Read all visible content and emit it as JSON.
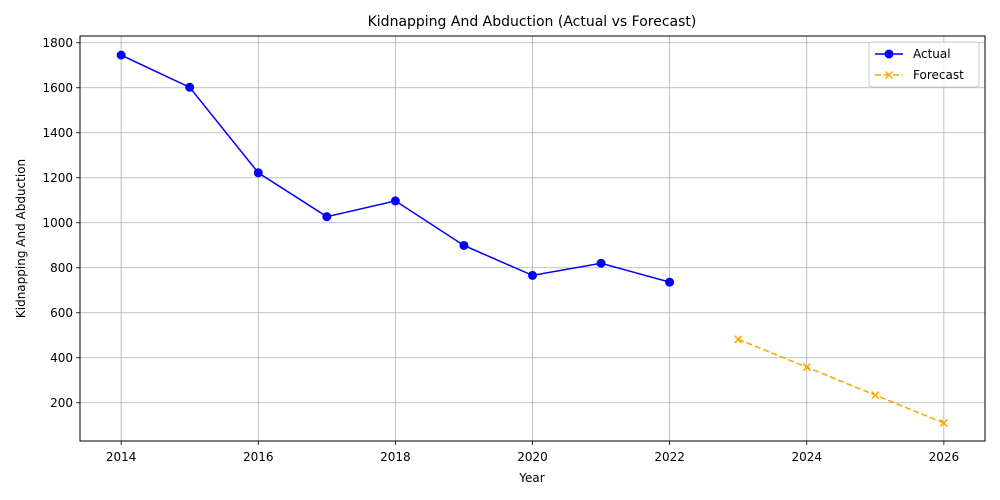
{
  "chart_data": {
    "type": "line",
    "title": "Kidnapping And Abduction (Actual vs Forecast)",
    "xlabel": "Year",
    "ylabel": "Kidnapping And Abduction",
    "xlim": [
      2013.4,
      2026.6
    ],
    "ylim": [
      30,
      1830
    ],
    "x_ticks": [
      2014,
      2016,
      2018,
      2020,
      2022,
      2024,
      2026
    ],
    "y_ticks": [
      200,
      400,
      600,
      800,
      1000,
      1200,
      1400,
      1600,
      1800
    ],
    "grid": true,
    "legend_position": "top-right",
    "series": [
      {
        "name": "Actual",
        "color": "#0000ff",
        "line_style": "solid",
        "marker": "circle",
        "x": [
          2014,
          2015,
          2016,
          2017,
          2018,
          2019,
          2020,
          2021,
          2022
        ],
        "y": [
          1745,
          1602,
          1222,
          1027,
          1097,
          899,
          766,
          820,
          736
        ]
      },
      {
        "name": "Forecast",
        "color": "#ffa500",
        "line_style": "dashed",
        "marker": "x",
        "x": [
          2023,
          2024,
          2025,
          2026
        ],
        "y": [
          482,
          358,
          234,
          110
        ]
      }
    ]
  }
}
